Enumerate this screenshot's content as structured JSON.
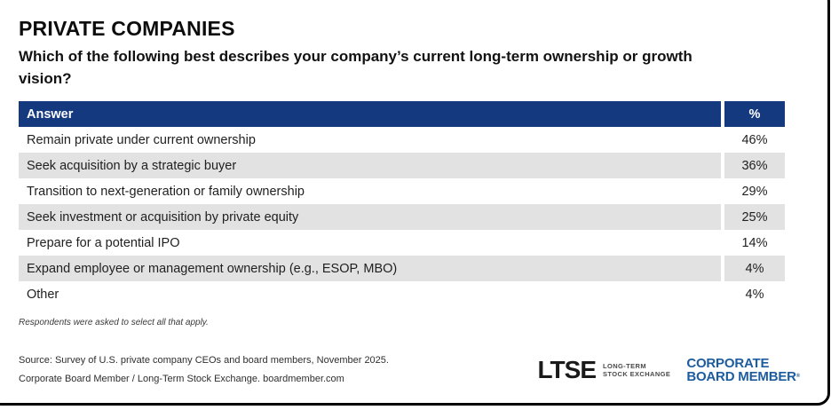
{
  "header": {
    "title": "PRIVATE COMPANIES",
    "question": "Which of the following best describes your company’s current long-term ownership or growth vision?"
  },
  "table": {
    "columns": {
      "answer": "Answer",
      "pct": "%"
    },
    "rows": [
      {
        "answer": "Remain private under current ownership",
        "pct": "46%"
      },
      {
        "answer": "Seek acquisition by a strategic buyer",
        "pct": "36%"
      },
      {
        "answer": "Transition to next-generation or family ownership",
        "pct": "29%"
      },
      {
        "answer": "Seek investment or acquisition by private equity",
        "pct": "25%"
      },
      {
        "answer": "Prepare for a potential IPO",
        "pct": "14%"
      },
      {
        "answer": "Expand employee or management ownership (e.g., ESOP, MBO)",
        "pct": "4%"
      },
      {
        "answer": "Other",
        "pct": "4%"
      }
    ],
    "header_bg": "#14397E",
    "alt_row_bg": "#E2E2E2"
  },
  "notes": {
    "methodology": "Respondents were asked to select all that apply.",
    "source_line1": "Source: Survey of U.S. private company CEOs and board members, November 2025.",
    "source_line2": "Corporate Board Member / Long-Term Stock Exchange. boardmember.com"
  },
  "logos": {
    "ltse": {
      "wordmark": "LTSE",
      "tagline_line1": "LONG-TERM",
      "tagline_line2": "STOCK EXCHANGE"
    },
    "cbm": {
      "line1": "CORPORATE",
      "line2": "BOARD MEMBER",
      "registered_mark": "®",
      "color": "#1D5C9E"
    }
  },
  "chart_data": {
    "type": "table",
    "title": "PRIVATE COMPANIES",
    "subtitle": "Which of the following best describes your company’s current long-term ownership or growth vision?",
    "columns": [
      "Answer",
      "%"
    ],
    "categories": [
      "Remain private under current ownership",
      "Seek acquisition by a strategic buyer",
      "Transition to next-generation or family ownership",
      "Seek investment or acquisition by private equity",
      "Prepare for a potential IPO",
      "Expand employee or management ownership (e.g., ESOP, MBO)",
      "Other"
    ],
    "values": [
      46,
      36,
      29,
      25,
      14,
      4,
      4
    ],
    "value_format": "percent",
    "note": "Respondents were asked to select all that apply.",
    "source": "Survey of U.S. private company CEOs and board members, November 2025. Corporate Board Member / Long-Term Stock Exchange. boardmember.com"
  }
}
